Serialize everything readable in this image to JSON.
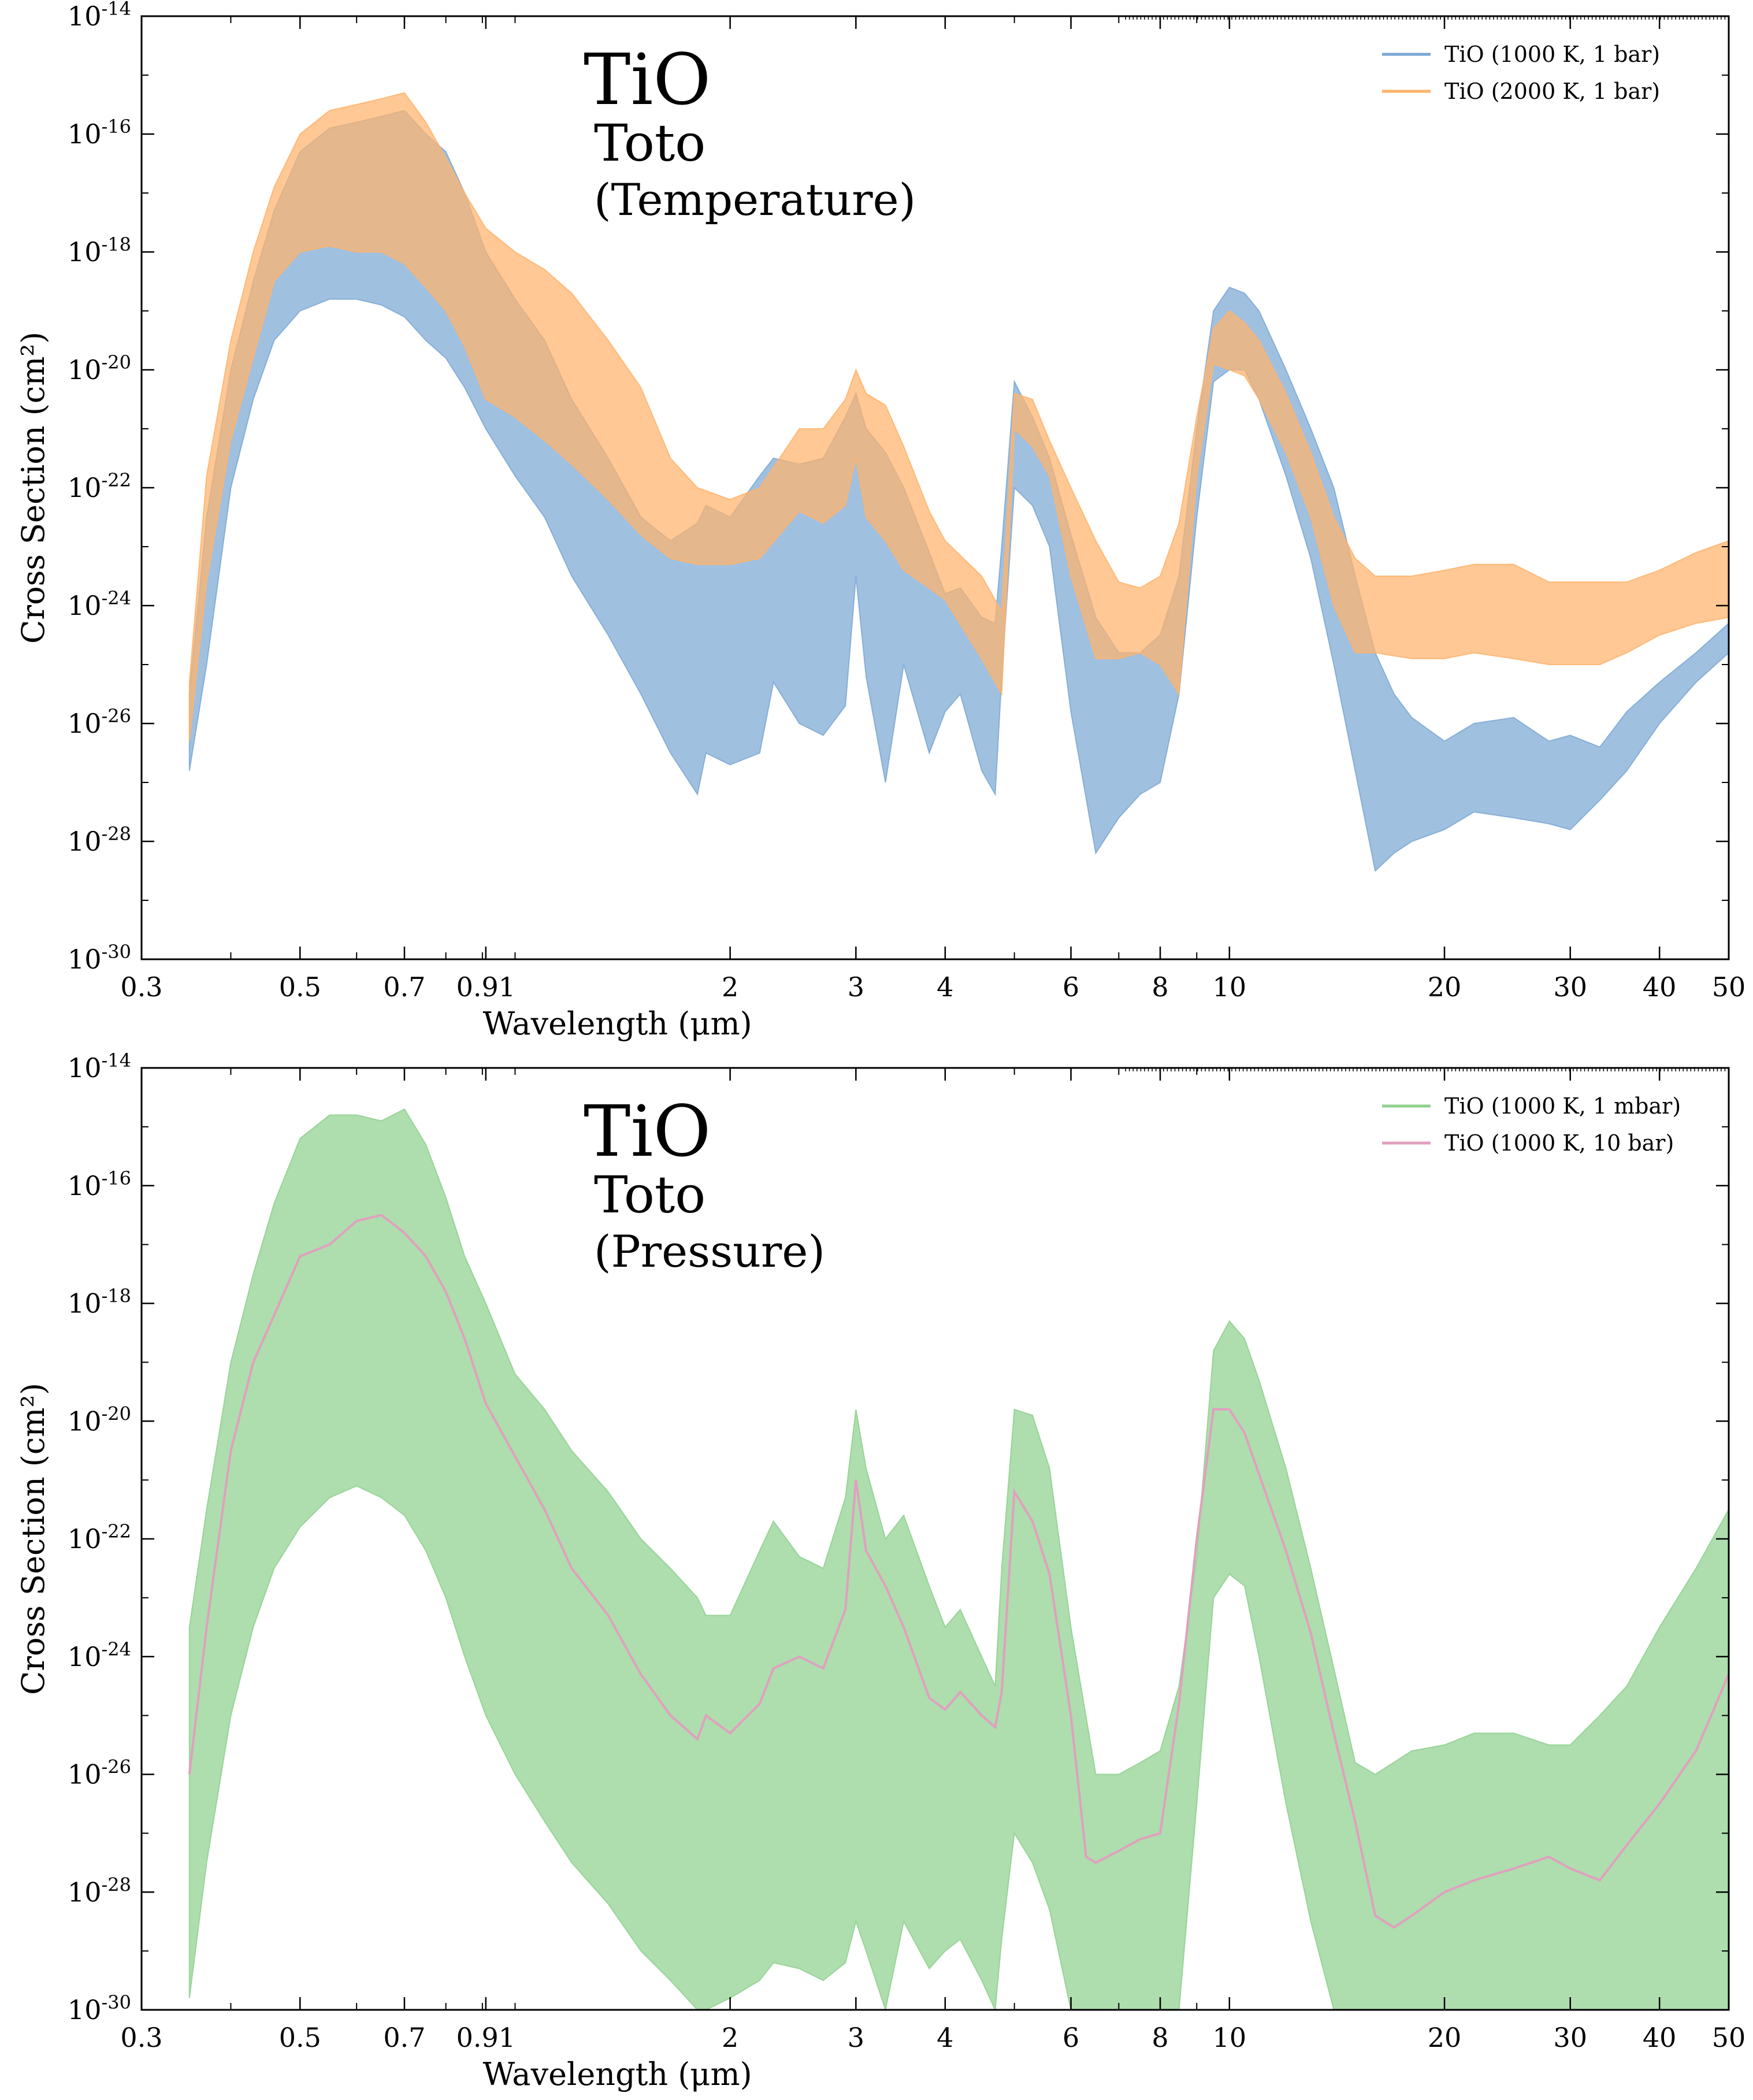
{
  "chart_data": [
    {
      "type": "line",
      "title": "TiO",
      "subtitle": "Toto",
      "subtitle2": "(Temperature)",
      "xlabel": "Wavelength (μm)",
      "ylabel": "Cross Section (cm²)",
      "xscale": "log",
      "yscale": "log",
      "xlim": [
        0.3,
        50
      ],
      "ylim": [
        1e-30,
        1e-14
      ],
      "xticks": [
        "0.3",
        "0.5",
        "0.7",
        "0.91",
        "2",
        "3",
        "4",
        "6",
        "8",
        "10",
        "20",
        "30",
        "40",
        "50"
      ],
      "xtick_values": [
        0.3,
        0.5,
        0.7,
        0.91,
        2,
        3,
        4,
        6,
        8,
        10,
        20,
        30,
        40,
        50
      ],
      "ytick_exponents": [
        "-14",
        "-16",
        "-18",
        "-20",
        "-22",
        "-24",
        "-26",
        "-28",
        "-30"
      ],
      "ytick_base": "10",
      "grid": false,
      "legend_position": "top-right",
      "series": [
        {
          "name": "TiO (1000 K, 1 bar)",
          "color": "#7ba7d4",
          "render": "band",
          "x": [
            0.35,
            0.37,
            0.4,
            0.43,
            0.46,
            0.5,
            0.55,
            0.6,
            0.65,
            0.7,
            0.75,
            0.8,
            0.85,
            0.91,
            1.0,
            1.1,
            1.2,
            1.35,
            1.5,
            1.65,
            1.8,
            1.85,
            2.0,
            2.2,
            2.3,
            2.5,
            2.7,
            2.9,
            3.0,
            3.1,
            3.3,
            3.5,
            3.8,
            4.0,
            4.2,
            4.5,
            4.7,
            4.8,
            5.0,
            5.3,
            5.6,
            6.0,
            6.5,
            7.0,
            7.5,
            8.0,
            8.5,
            9.0,
            9.5,
            10.0,
            10.5,
            11.0,
            12.0,
            13.0,
            14.0,
            15.0,
            16.0,
            17.0,
            18.0,
            20.0,
            22.0,
            25.0,
            28.0,
            30.0,
            33.0,
            36.0,
            40.0,
            45.0,
            50.0
          ],
          "upper": [
            -25.5,
            -22.5,
            -20.0,
            -18.5,
            -17.3,
            -16.3,
            -15.9,
            -15.8,
            -15.7,
            -15.6,
            -16.0,
            -16.3,
            -17.0,
            -18.0,
            -18.8,
            -19.5,
            -20.5,
            -21.5,
            -22.5,
            -22.9,
            -22.6,
            -22.3,
            -22.5,
            -21.8,
            -21.5,
            -21.6,
            -21.5,
            -20.8,
            -20.4,
            -21.0,
            -21.4,
            -22.0,
            -23.1,
            -23.8,
            -23.7,
            -24.2,
            -24.3,
            -23.0,
            -20.2,
            -20.8,
            -21.5,
            -22.8,
            -24.2,
            -24.8,
            -24.8,
            -24.5,
            -23.5,
            -21.0,
            -19.0,
            -18.6,
            -18.7,
            -19.0,
            -20.0,
            -21.0,
            -22.0,
            -23.5,
            -24.8,
            -25.5,
            -25.9,
            -26.3,
            -26.0,
            -25.9,
            -26.3,
            -26.2,
            -26.4,
            -25.8,
            -25.3,
            -24.8,
            -24.3
          ],
          "lower": [
            -26.8,
            -25.0,
            -22.0,
            -20.5,
            -19.5,
            -19.0,
            -18.8,
            -18.8,
            -18.9,
            -19.1,
            -19.5,
            -19.8,
            -20.3,
            -21.0,
            -21.8,
            -22.5,
            -23.5,
            -24.5,
            -25.5,
            -26.5,
            -27.2,
            -26.5,
            -26.7,
            -26.5,
            -25.3,
            -26.0,
            -26.2,
            -25.7,
            -23.5,
            -25.2,
            -27.0,
            -25.0,
            -26.5,
            -25.8,
            -25.5,
            -26.8,
            -27.2,
            -25.2,
            -22.0,
            -22.3,
            -23.0,
            -25.8,
            -28.2,
            -27.6,
            -27.2,
            -27.0,
            -25.5,
            -22.5,
            -20.2,
            -20.0,
            -20.0,
            -20.5,
            -21.8,
            -23.2,
            -25.0,
            -26.8,
            -28.5,
            -28.2,
            -28.0,
            -27.8,
            -27.5,
            -27.6,
            -27.7,
            -27.8,
            -27.3,
            -26.8,
            -26.0,
            -25.3,
            -24.8
          ]
        },
        {
          "name": "TiO (2000 K, 1 bar)",
          "color": "#ffb36b",
          "render": "band",
          "x": [
            0.35,
            0.37,
            0.4,
            0.43,
            0.46,
            0.5,
            0.55,
            0.6,
            0.65,
            0.7,
            0.75,
            0.8,
            0.85,
            0.91,
            1.0,
            1.1,
            1.2,
            1.35,
            1.5,
            1.65,
            1.8,
            2.0,
            2.2,
            2.5,
            2.7,
            2.9,
            3.0,
            3.1,
            3.3,
            3.5,
            3.8,
            4.0,
            4.5,
            4.8,
            5.0,
            5.3,
            5.6,
            6.0,
            6.5,
            7.0,
            7.5,
            8.0,
            8.5,
            9.0,
            9.5,
            10.0,
            10.5,
            11.0,
            12.0,
            13.0,
            14.0,
            15.0,
            16.0,
            18.0,
            20.0,
            22.0,
            25.0,
            28.0,
            30.0,
            33.0,
            36.0,
            40.0,
            45.0,
            50.0
          ],
          "upper": [
            -25.3,
            -21.8,
            -19.5,
            -18.0,
            -16.9,
            -16.0,
            -15.6,
            -15.5,
            -15.4,
            -15.3,
            -15.8,
            -16.4,
            -17.0,
            -17.6,
            -18.0,
            -18.3,
            -18.7,
            -19.5,
            -20.3,
            -21.5,
            -22.0,
            -22.2,
            -22.0,
            -21.0,
            -21.0,
            -20.5,
            -20.0,
            -20.4,
            -20.6,
            -21.3,
            -22.4,
            -22.9,
            -23.5,
            -24.1,
            -20.4,
            -20.5,
            -21.2,
            -22.0,
            -22.9,
            -23.6,
            -23.7,
            -23.5,
            -22.6,
            -20.8,
            -19.3,
            -19.0,
            -19.2,
            -19.5,
            -20.4,
            -21.4,
            -22.5,
            -23.2,
            -23.5,
            -23.5,
            -23.4,
            -23.3,
            -23.3,
            -23.6,
            -23.6,
            -23.6,
            -23.6,
            -23.4,
            -23.1,
            -22.9
          ],
          "lower": [
            -26.3,
            -23.6,
            -21.2,
            -19.8,
            -18.5,
            -18.0,
            -17.9,
            -18.0,
            -18.0,
            -18.2,
            -18.6,
            -19.0,
            -19.6,
            -20.5,
            -20.8,
            -21.2,
            -21.6,
            -22.2,
            -22.8,
            -23.2,
            -23.3,
            -23.3,
            -23.2,
            -22.4,
            -22.6,
            -22.3,
            -21.5,
            -22.5,
            -22.9,
            -23.4,
            -23.7,
            -23.9,
            -24.9,
            -25.5,
            -21.0,
            -21.3,
            -21.8,
            -23.5,
            -24.9,
            -24.9,
            -24.8,
            -25.0,
            -25.5,
            -21.8,
            -19.9,
            -20.0,
            -20.1,
            -20.5,
            -21.4,
            -22.5,
            -24.0,
            -24.8,
            -24.8,
            -24.9,
            -24.9,
            -24.8,
            -24.9,
            -25.0,
            -25.0,
            -25.0,
            -24.8,
            -24.5,
            -24.3,
            -24.2
          ]
        }
      ]
    },
    {
      "type": "line",
      "title": "TiO",
      "subtitle": "Toto",
      "subtitle2": "(Pressure)",
      "xlabel": "Wavelength (μm)",
      "ylabel": "Cross Section (cm²)",
      "xscale": "log",
      "yscale": "log",
      "xlim": [
        0.3,
        50
      ],
      "ylim": [
        1e-30,
        1e-14
      ],
      "xticks": [
        "0.3",
        "0.5",
        "0.7",
        "0.91",
        "2",
        "3",
        "4",
        "6",
        "8",
        "10",
        "20",
        "30",
        "40",
        "50"
      ],
      "xtick_values": [
        0.3,
        0.5,
        0.7,
        0.91,
        2,
        3,
        4,
        6,
        8,
        10,
        20,
        30,
        40,
        50
      ],
      "ytick_exponents": [
        "-14",
        "-16",
        "-18",
        "-20",
        "-22",
        "-24",
        "-26",
        "-28",
        "-30"
      ],
      "ytick_base": "10",
      "grid": false,
      "legend_position": "top-right",
      "series": [
        {
          "name": "TiO (1000 K, 1 mbar)",
          "color": "#8fd08f",
          "render": "band",
          "x": [
            0.35,
            0.37,
            0.4,
            0.43,
            0.46,
            0.5,
            0.55,
            0.6,
            0.65,
            0.7,
            0.75,
            0.8,
            0.85,
            0.91,
            1.0,
            1.1,
            1.2,
            1.35,
            1.5,
            1.65,
            1.8,
            1.85,
            2.0,
            2.2,
            2.3,
            2.5,
            2.7,
            2.9,
            3.0,
            3.1,
            3.3,
            3.5,
            3.8,
            4.0,
            4.2,
            4.5,
            4.7,
            4.8,
            5.0,
            5.3,
            5.6,
            6.0,
            6.5,
            7.0,
            7.5,
            8.0,
            8.5,
            9.0,
            9.5,
            10.0,
            10.5,
            11.0,
            12.0,
            13.0,
            14.0,
            15.0,
            16.0,
            18.0,
            20.0,
            22.0,
            25.0,
            28.0,
            30.0,
            33.0,
            36.0,
            40.0,
            45.0,
            50.0
          ],
          "upper": [
            -23.5,
            -21.5,
            -19.0,
            -17.5,
            -16.3,
            -15.2,
            -14.8,
            -14.8,
            -14.9,
            -14.7,
            -15.3,
            -16.2,
            -17.2,
            -18.0,
            -19.2,
            -19.8,
            -20.5,
            -21.2,
            -22.0,
            -22.5,
            -23.0,
            -23.3,
            -23.3,
            -22.2,
            -21.7,
            -22.3,
            -22.5,
            -21.3,
            -19.8,
            -20.8,
            -22.0,
            -21.6,
            -22.8,
            -23.5,
            -23.2,
            -24.0,
            -24.5,
            -22.5,
            -19.8,
            -19.9,
            -20.8,
            -23.5,
            -26.0,
            -26.0,
            -25.8,
            -25.6,
            -24.5,
            -22.3,
            -18.8,
            -18.3,
            -18.6,
            -19.3,
            -20.8,
            -22.5,
            -24.2,
            -25.8,
            -26.0,
            -25.6,
            -25.5,
            -25.3,
            -25.3,
            -25.5,
            -25.5,
            -25.0,
            -24.5,
            -23.5,
            -22.5,
            -21.5
          ],
          "lower": [
            -29.8,
            -27.5,
            -25.0,
            -23.5,
            -22.5,
            -21.8,
            -21.3,
            -21.1,
            -21.3,
            -21.6,
            -22.2,
            -23.0,
            -24.0,
            -25.0,
            -26.0,
            -26.8,
            -27.5,
            -28.2,
            -29.0,
            -29.5,
            -30.0,
            -30.0,
            -29.8,
            -29.5,
            -29.2,
            -29.3,
            -29.5,
            -29.2,
            -28.5,
            -29.0,
            -30.0,
            -28.5,
            -29.3,
            -29.0,
            -28.8,
            -29.5,
            -30.0,
            -28.8,
            -27.0,
            -27.5,
            -28.3,
            -30.0,
            -30.0,
            -30.0,
            -30.0,
            -30.0,
            -30.0,
            -26.5,
            -23.0,
            -22.6,
            -22.8,
            -24.0,
            -26.5,
            -28.5,
            -30.0,
            -30.0,
            -30.0,
            -30.0,
            -30.0,
            -30.0,
            -30.0,
            -30.0,
            -30.0,
            -30.0,
            -30.0,
            -30.0,
            -30.0,
            -30.0
          ]
        },
        {
          "name": "TiO (1000 K, 10 bar)",
          "color": "#e0a0be",
          "render": "line",
          "x": [
            0.35,
            0.37,
            0.4,
            0.43,
            0.46,
            0.5,
            0.55,
            0.6,
            0.65,
            0.7,
            0.75,
            0.8,
            0.85,
            0.91,
            1.0,
            1.1,
            1.2,
            1.35,
            1.5,
            1.65,
            1.8,
            1.85,
            2.0,
            2.2,
            2.3,
            2.5,
            2.7,
            2.9,
            3.0,
            3.1,
            3.3,
            3.5,
            3.8,
            4.0,
            4.2,
            4.5,
            4.7,
            4.8,
            5.0,
            5.3,
            5.6,
            6.0,
            6.3,
            6.5,
            7.0,
            7.5,
            8.0,
            8.5,
            9.0,
            9.5,
            10.0,
            10.5,
            11.0,
            12.0,
            13.0,
            14.0,
            15.0,
            16.0,
            17.0,
            18.0,
            20.0,
            22.0,
            25.0,
            28.0,
            30.0,
            33.0,
            36.0,
            40.0,
            45.0,
            50.0
          ],
          "y": [
            -26.0,
            -23.5,
            -20.5,
            -19.0,
            -18.2,
            -17.2,
            -17.0,
            -16.6,
            -16.5,
            -16.8,
            -17.2,
            -17.8,
            -18.6,
            -19.7,
            -20.6,
            -21.5,
            -22.5,
            -23.3,
            -24.3,
            -25.0,
            -25.4,
            -25.0,
            -25.3,
            -24.8,
            -24.2,
            -24.0,
            -24.2,
            -23.2,
            -21.0,
            -22.2,
            -22.8,
            -23.5,
            -24.7,
            -24.9,
            -24.6,
            -25.0,
            -25.2,
            -24.6,
            -21.2,
            -21.7,
            -22.6,
            -25.0,
            -27.4,
            -27.5,
            -27.3,
            -27.1,
            -27.0,
            -24.8,
            -22.0,
            -19.8,
            -19.8,
            -20.2,
            -20.9,
            -22.2,
            -23.6,
            -25.3,
            -26.8,
            -28.4,
            -28.6,
            -28.4,
            -28.0,
            -27.8,
            -27.6,
            -27.4,
            -27.6,
            -27.8,
            -27.2,
            -26.5,
            -25.6,
            -24.3
          ]
        }
      ]
    }
  ]
}
